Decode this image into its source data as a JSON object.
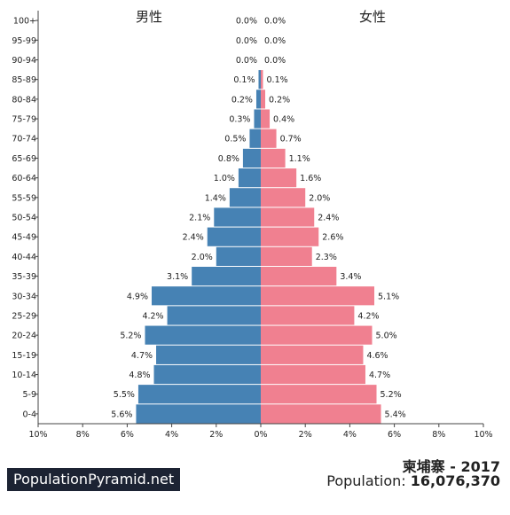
{
  "chart_data": {
    "type": "bar",
    "orientation": "horizontal-pyramid",
    "categories": [
      "100+",
      "95-99",
      "90-94",
      "85-89",
      "80-84",
      "75-79",
      "70-74",
      "65-69",
      "60-64",
      "55-59",
      "50-54",
      "45-49",
      "40-44",
      "35-39",
      "30-34",
      "25-29",
      "20-24",
      "15-19",
      "10-14",
      "5-9",
      "0-4"
    ],
    "series": [
      {
        "name": "男性",
        "color": "#4682b4",
        "values": [
          0.0,
          0.0,
          0.0,
          0.1,
          0.2,
          0.3,
          0.5,
          0.8,
          1.0,
          1.4,
          2.1,
          2.4,
          2.0,
          3.1,
          4.9,
          4.2,
          5.2,
          4.7,
          4.8,
          5.5,
          5.6
        ],
        "labels": [
          "0.0%",
          "0.0%",
          "0.0%",
          "0.1%",
          "0.2%",
          "0.3%",
          "0.5%",
          "0.8%",
          "1.0%",
          "1.4%",
          "2.1%",
          "2.4%",
          "2.0%",
          "3.1%",
          "4.9%",
          "4.2%",
          "5.2%",
          "4.7%",
          "4.8%",
          "5.5%",
          "5.6%"
        ]
      },
      {
        "name": "女性",
        "color": "#f08090",
        "values": [
          0.0,
          0.0,
          0.0,
          0.1,
          0.2,
          0.4,
          0.7,
          1.1,
          1.6,
          2.0,
          2.4,
          2.6,
          2.3,
          3.4,
          5.1,
          4.2,
          5.0,
          4.6,
          4.7,
          5.2,
          5.4
        ],
        "labels": [
          "0.0%",
          "0.0%",
          "0.0%",
          "0.1%",
          "0.2%",
          "0.4%",
          "0.7%",
          "1.1%",
          "1.6%",
          "2.0%",
          "2.4%",
          "2.6%",
          "2.3%",
          "3.4%",
          "5.1%",
          "4.2%",
          "5.0%",
          "4.6%",
          "4.7%",
          "5.2%",
          "5.4%"
        ]
      }
    ],
    "xlim": [
      -10,
      10
    ],
    "xticks": [
      -10,
      -8,
      -6,
      -4,
      -2,
      0,
      2,
      4,
      6,
      8,
      10
    ],
    "xtick_labels": [
      "10%",
      "8%",
      "6%",
      "4%",
      "2%",
      "0%",
      "2%",
      "4%",
      "6%",
      "8%",
      "10%"
    ],
    "grid": false
  },
  "caption": {
    "title": "柬埔寨 - 2017",
    "population_label": "Population:",
    "population_value": "16,076,370"
  },
  "brand": "PopulationPyramid.net"
}
